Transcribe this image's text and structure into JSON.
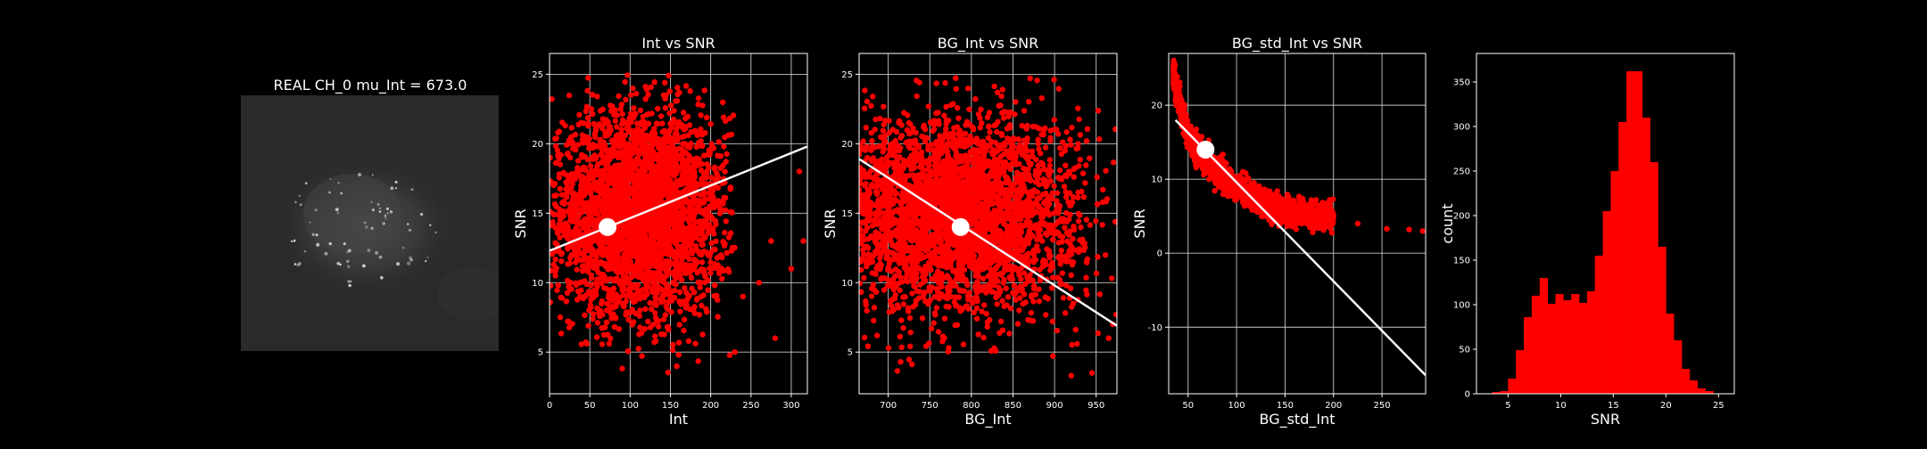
{
  "image_panel": {
    "title": "REAL CH_0 mu_Int = 673.0"
  },
  "chart_data": [
    {
      "type": "scatter",
      "title": "Int vs SNR",
      "xlabel": "Int",
      "ylabel": "SNR",
      "xlim": [
        0,
        320
      ],
      "ylim": [
        2,
        26.5
      ],
      "xticks": [
        0,
        50,
        100,
        150,
        200,
        250,
        300
      ],
      "yticks": [
        5,
        10,
        15,
        20,
        25
      ],
      "grid": true,
      "point_color": "#ff0000",
      "cloud": {
        "x_range": [
          0,
          230
        ],
        "y_range": [
          3,
          25
        ],
        "center": [
          110,
          15
        ],
        "count": 3500
      },
      "outliers": [
        [
          260,
          10
        ],
        [
          275,
          13
        ],
        [
          280,
          6
        ],
        [
          300,
          11
        ],
        [
          310,
          18
        ],
        [
          315,
          13
        ],
        [
          240,
          9
        ],
        [
          230,
          5
        ]
      ],
      "fit_line": {
        "x": [
          0,
          320
        ],
        "y": [
          12.3,
          19.8
        ]
      },
      "marker": {
        "x": 72,
        "y": 14
      }
    },
    {
      "type": "scatter",
      "title": "BG_Int vs SNR",
      "xlabel": "BG_Int",
      "ylabel": "SNR",
      "xlim": [
        665,
        975
      ],
      "ylim": [
        2,
        26.5
      ],
      "xticks": [
        700,
        750,
        800,
        850,
        900,
        950
      ],
      "yticks": [
        5,
        10,
        15,
        20,
        25
      ],
      "grid": true,
      "point_color": "#ff0000",
      "cloud": {
        "x_range": [
          665,
          975
        ],
        "y_range": [
          3.5,
          25
        ],
        "center": [
          780,
          15
        ],
        "count": 3500
      },
      "outliers": [
        [
          945,
          3.5
        ],
        [
          920,
          3.3
        ],
        [
          965,
          6
        ],
        [
          970,
          7
        ]
      ],
      "fit_line": {
        "x": [
          665,
          975
        ],
        "y": [
          18.9,
          6.9
        ]
      },
      "marker": {
        "x": 787,
        "y": 14
      }
    },
    {
      "type": "scatter",
      "title": "BG_std_Int vs SNR",
      "xlabel": "BG_std_Int",
      "ylabel": "SNR",
      "xlim": [
        30,
        295
      ],
      "ylim": [
        -19,
        27
      ],
      "xticks": [
        50,
        100,
        150,
        200,
        250
      ],
      "yticks": [
        -10,
        0,
        10,
        20
      ],
      "grid": true,
      "point_color": "#ff0000",
      "curve_samples": [
        [
          35,
          24
        ],
        [
          40,
          21
        ],
        [
          50,
          16
        ],
        [
          65,
          13
        ],
        [
          80,
          11
        ],
        [
          100,
          9
        ],
        [
          120,
          7.5
        ],
        [
          140,
          6
        ],
        [
          160,
          5.5
        ],
        [
          180,
          5
        ],
        [
          200,
          5
        ]
      ],
      "outliers": [
        [
          225,
          4
        ],
        [
          255,
          3.3
        ],
        [
          278,
          3.2
        ],
        [
          292,
          3
        ]
      ],
      "fit_line": {
        "x": [
          37,
          295
        ],
        "y": [
          18,
          -16.5
        ]
      },
      "marker": {
        "x": 68,
        "y": 14
      }
    },
    {
      "type": "bar",
      "title": "",
      "xlabel": "SNR",
      "ylabel": "count",
      "xlim": [
        2,
        26.5
      ],
      "ylim": [
        0,
        382
      ],
      "xticks": [
        5,
        10,
        15,
        20,
        25
      ],
      "yticks": [
        0,
        50,
        100,
        150,
        200,
        250,
        300,
        350
      ],
      "grid": false,
      "bar_color": "#ff0000",
      "bin_start": 3.5,
      "bin_width": 0.75,
      "counts": [
        2,
        3,
        17,
        49,
        86,
        110,
        130,
        101,
        112,
        105,
        112,
        102,
        115,
        155,
        205,
        250,
        305,
        362,
        362,
        310,
        260,
        165,
        90,
        60,
        28,
        15,
        6,
        3
      ]
    }
  ]
}
